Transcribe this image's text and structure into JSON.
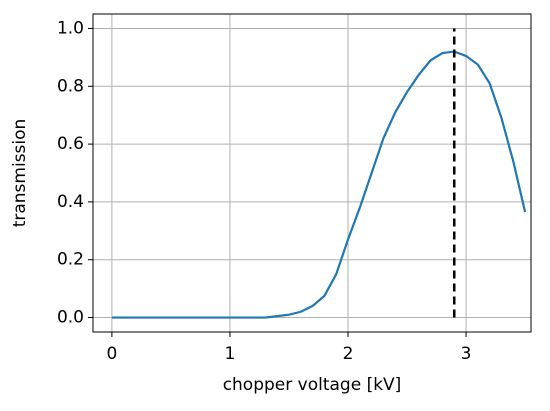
{
  "chart_data": {
    "type": "line",
    "xlabel": "chopper voltage [kV]",
    "ylabel": "transmission",
    "x": [
      0,
      0.1,
      0.2,
      0.3,
      0.4,
      0.5,
      0.6,
      0.7,
      0.8,
      0.9,
      1.0,
      1.1,
      1.2,
      1.3,
      1.4,
      1.5,
      1.6,
      1.7,
      1.8,
      1.9,
      2.0,
      2.1,
      2.2,
      2.3,
      2.4,
      2.5,
      2.6,
      2.7,
      2.8,
      2.9,
      3.0,
      3.1,
      3.2,
      3.3,
      3.4,
      3.5
    ],
    "series": [
      {
        "color": "#1f77b4",
        "values": [
          0,
          0,
          0,
          0,
          0,
          0,
          0,
          0,
          0,
          0,
          0,
          0,
          0,
          0,
          0.005,
          0.01,
          0.02,
          0.04,
          0.075,
          0.15,
          0.27,
          0.38,
          0.5,
          0.62,
          0.71,
          0.78,
          0.84,
          0.89,
          0.915,
          0.92,
          0.905,
          0.875,
          0.81,
          0.69,
          0.54,
          0.365
        ]
      }
    ],
    "vline": {
      "x": 2.9,
      "ymin": 0,
      "ymax": 1,
      "color": "#000000"
    },
    "xlim": [
      -0.16,
      3.55
    ],
    "ylim": [
      -0.05,
      1.05
    ],
    "xticks": [
      0,
      1,
      2,
      3
    ],
    "yticks": [
      {
        "value": 0,
        "label": "0.0"
      },
      0.2,
      0.4,
      0.6,
      0.8,
      {
        "value": 1,
        "label": "1.0"
      }
    ],
    "grid": true
  }
}
